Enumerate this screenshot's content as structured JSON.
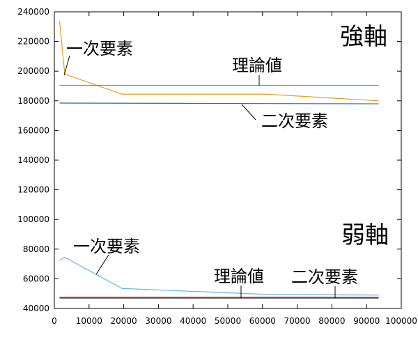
{
  "chart_data": {
    "type": "line",
    "xlim": [
      0,
      100000
    ],
    "ylim": [
      40000,
      240000
    ],
    "x_ticks": [
      0,
      10000,
      20000,
      30000,
      40000,
      50000,
      60000,
      70000,
      80000,
      90000,
      100000
    ],
    "y_ticks": [
      40000,
      60000,
      80000,
      100000,
      120000,
      140000,
      160000,
      180000,
      200000,
      220000,
      240000
    ],
    "grid": false,
    "legend": "none",
    "series": [
      {
        "group": "strong",
        "color": "#e0a020",
        "x": [
          1500,
          3000,
          19500,
          61000,
          93500
        ],
        "y": [
          234000,
          198000,
          184500,
          184500,
          180000
        ]
      },
      {
        "group": "strong",
        "color": "#20b080",
        "x": [
          1500,
          93500
        ],
        "y": [
          190500,
          190500
        ]
      },
      {
        "group": "strong",
        "color": "#2070a0",
        "x": [
          1500,
          93500
        ],
        "y": [
          178500,
          178000
        ]
      },
      {
        "group": "weak",
        "color": "#60b8e8",
        "x": [
          1500,
          3000,
          19500,
          61000,
          93500
        ],
        "y": [
          72500,
          74500,
          53500,
          49500,
          49000
        ]
      },
      {
        "group": "weak",
        "color": "#e03020",
        "x": [
          1500,
          93500
        ],
        "y": [
          47500,
          47500
        ]
      },
      {
        "group": "weak",
        "color": "#404040",
        "x": [
          1500,
          93500
        ],
        "y": [
          47000,
          47000
        ]
      }
    ],
    "annotations": [
      {
        "key": "strong_axis",
        "text": "強軸"
      },
      {
        "key": "weak_axis",
        "text": "弱軸"
      },
      {
        "key": "strong_first_order",
        "text": "一次要素"
      },
      {
        "key": "strong_theory",
        "text": "理論値"
      },
      {
        "key": "strong_second_order",
        "text": "二次要素"
      },
      {
        "key": "weak_first_order",
        "text": "一次要素"
      },
      {
        "key": "weak_theory",
        "text": "理論値"
      },
      {
        "key": "weak_second_order",
        "text": "二次要素"
      }
    ]
  }
}
